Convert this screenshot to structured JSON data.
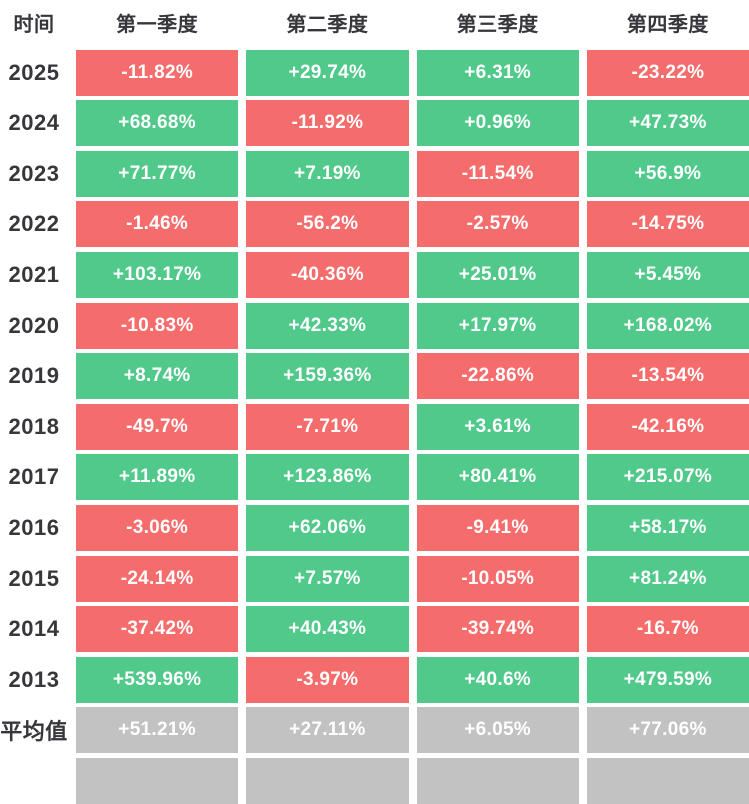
{
  "colors": {
    "positive": "#50C98B",
    "negative": "#F56C6C",
    "neutral": "#C2C2C2",
    "label_text": "#36363B",
    "cell_text": "#FFFFFF"
  },
  "table": {
    "corner_label": "时间",
    "quarter_headers": [
      "第一季度",
      "第二季度",
      "第三季度",
      "第四季度"
    ],
    "rows": [
      {
        "label": "2025",
        "cells": [
          {
            "value": "-11.82%",
            "tone": "negative"
          },
          {
            "value": "+29.74%",
            "tone": "positive"
          },
          {
            "value": "+6.31%",
            "tone": "positive"
          },
          {
            "value": "-23.22%",
            "tone": "negative"
          }
        ]
      },
      {
        "label": "2024",
        "cells": [
          {
            "value": "+68.68%",
            "tone": "positive"
          },
          {
            "value": "-11.92%",
            "tone": "negative"
          },
          {
            "value": "+0.96%",
            "tone": "positive"
          },
          {
            "value": "+47.73%",
            "tone": "positive"
          }
        ]
      },
      {
        "label": "2023",
        "cells": [
          {
            "value": "+71.77%",
            "tone": "positive"
          },
          {
            "value": "+7.19%",
            "tone": "positive"
          },
          {
            "value": "-11.54%",
            "tone": "negative"
          },
          {
            "value": "+56.9%",
            "tone": "positive"
          }
        ]
      },
      {
        "label": "2022",
        "cells": [
          {
            "value": "-1.46%",
            "tone": "negative"
          },
          {
            "value": "-56.2%",
            "tone": "negative"
          },
          {
            "value": "-2.57%",
            "tone": "negative"
          },
          {
            "value": "-14.75%",
            "tone": "negative"
          }
        ]
      },
      {
        "label": "2021",
        "cells": [
          {
            "value": "+103.17%",
            "tone": "positive"
          },
          {
            "value": "-40.36%",
            "tone": "negative"
          },
          {
            "value": "+25.01%",
            "tone": "positive"
          },
          {
            "value": "+5.45%",
            "tone": "positive"
          }
        ]
      },
      {
        "label": "2020",
        "cells": [
          {
            "value": "-10.83%",
            "tone": "negative"
          },
          {
            "value": "+42.33%",
            "tone": "positive"
          },
          {
            "value": "+17.97%",
            "tone": "positive"
          },
          {
            "value": "+168.02%",
            "tone": "positive"
          }
        ]
      },
      {
        "label": "2019",
        "cells": [
          {
            "value": "+8.74%",
            "tone": "positive"
          },
          {
            "value": "+159.36%",
            "tone": "positive"
          },
          {
            "value": "-22.86%",
            "tone": "negative"
          },
          {
            "value": "-13.54%",
            "tone": "negative"
          }
        ]
      },
      {
        "label": "2018",
        "cells": [
          {
            "value": "-49.7%",
            "tone": "negative"
          },
          {
            "value": "-7.71%",
            "tone": "negative"
          },
          {
            "value": "+3.61%",
            "tone": "positive"
          },
          {
            "value": "-42.16%",
            "tone": "negative"
          }
        ]
      },
      {
        "label": "2017",
        "cells": [
          {
            "value": "+11.89%",
            "tone": "positive"
          },
          {
            "value": "+123.86%",
            "tone": "positive"
          },
          {
            "value": "+80.41%",
            "tone": "positive"
          },
          {
            "value": "+215.07%",
            "tone": "positive"
          }
        ]
      },
      {
        "label": "2016",
        "cells": [
          {
            "value": "-3.06%",
            "tone": "negative"
          },
          {
            "value": "+62.06%",
            "tone": "positive"
          },
          {
            "value": "-9.41%",
            "tone": "negative"
          },
          {
            "value": "+58.17%",
            "tone": "positive"
          }
        ]
      },
      {
        "label": "2015",
        "cells": [
          {
            "value": "-24.14%",
            "tone": "negative"
          },
          {
            "value": "+7.57%",
            "tone": "positive"
          },
          {
            "value": "-10.05%",
            "tone": "negative"
          },
          {
            "value": "+81.24%",
            "tone": "positive"
          }
        ]
      },
      {
        "label": "2014",
        "cells": [
          {
            "value": "-37.42%",
            "tone": "negative"
          },
          {
            "value": "+40.43%",
            "tone": "positive"
          },
          {
            "value": "-39.74%",
            "tone": "negative"
          },
          {
            "value": "-16.7%",
            "tone": "negative"
          }
        ]
      },
      {
        "label": "2013",
        "cells": [
          {
            "value": "+539.96%",
            "tone": "positive"
          },
          {
            "value": "-3.97%",
            "tone": "negative"
          },
          {
            "value": "+40.6%",
            "tone": "positive"
          },
          {
            "value": "+479.59%",
            "tone": "positive"
          }
        ]
      },
      {
        "label": "平均值",
        "is_average": true,
        "cells": [
          {
            "value": "+51.21%",
            "tone": "neutral"
          },
          {
            "value": "+27.11%",
            "tone": "neutral"
          },
          {
            "value": "+6.05%",
            "tone": "neutral"
          },
          {
            "value": "+77.06%",
            "tone": "neutral"
          }
        ]
      }
    ],
    "clipped_row_tones": [
      "neutral",
      "neutral",
      "neutral",
      "neutral"
    ]
  },
  "chart_data": {
    "type": "heatmap",
    "title": "",
    "columns": [
      "第一季度",
      "第二季度",
      "第三季度",
      "第四季度"
    ],
    "row_labels": [
      "2025",
      "2024",
      "2023",
      "2022",
      "2021",
      "2020",
      "2019",
      "2018",
      "2017",
      "2016",
      "2015",
      "2014",
      "2013",
      "平均值"
    ],
    "values_pct": [
      [
        -11.82,
        29.74,
        6.31,
        -23.22
      ],
      [
        68.68,
        -11.92,
        0.96,
        47.73
      ],
      [
        71.77,
        7.19,
        -11.54,
        56.9
      ],
      [
        -1.46,
        -56.2,
        -2.57,
        -14.75
      ],
      [
        103.17,
        -40.36,
        25.01,
        5.45
      ],
      [
        -10.83,
        42.33,
        17.97,
        168.02
      ],
      [
        8.74,
        159.36,
        -22.86,
        -13.54
      ],
      [
        -49.7,
        -7.71,
        3.61,
        -42.16
      ],
      [
        11.89,
        123.86,
        80.41,
        215.07
      ],
      [
        -3.06,
        62.06,
        -9.41,
        58.17
      ],
      [
        -24.14,
        7.57,
        -10.05,
        81.24
      ],
      [
        -37.42,
        40.43,
        -39.74,
        -16.7
      ],
      [
        539.96,
        -3.97,
        40.6,
        479.59
      ],
      [
        51.21,
        27.11,
        6.05,
        77.06
      ]
    ],
    "unit": "%",
    "color_rule": "positive=green #50C98B, negative=red #F56C6C, average row=gray #C2C2C2",
    "legend_position": "none",
    "grid": false
  }
}
